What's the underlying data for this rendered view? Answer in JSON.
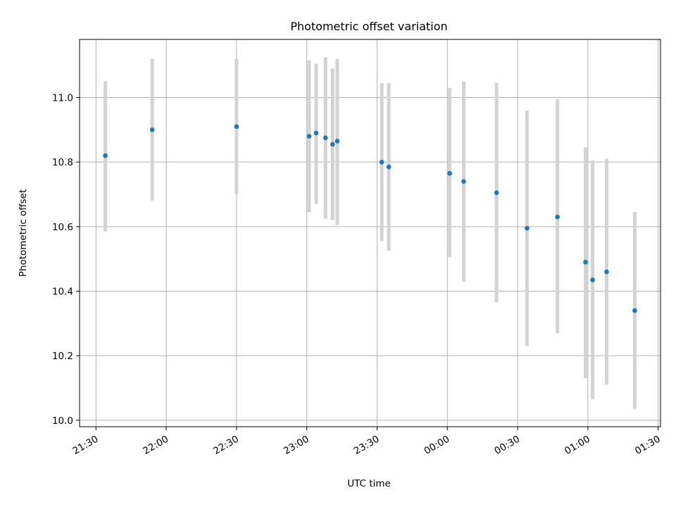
{
  "chart_data": {
    "type": "scatter",
    "title": "Photometric offset variation",
    "xlabel": "UTC time",
    "ylabel": "Photometric offset",
    "x_ticks": [
      "21:30",
      "22:00",
      "22:30",
      "23:00",
      "23:30",
      "00:00",
      "00:30",
      "01:00",
      "01:30"
    ],
    "y_ticks": [
      "10.0",
      "10.2",
      "10.4",
      "10.6",
      "10.8",
      "11.0"
    ],
    "xlim": [
      "21:23",
      "01:31"
    ],
    "ylim": [
      9.98,
      11.18
    ],
    "grid": true,
    "colors": {
      "points": "#1f77b4",
      "error_bars": "#d3d3d3",
      "grid": "#b0b0b0"
    },
    "series": [
      {
        "points": [
          {
            "x": "21:34",
            "y": 10.82,
            "yerr_low": 10.585,
            "yerr_high": 11.05
          },
          {
            "x": "21:54",
            "y": 10.9,
            "yerr_low": 10.68,
            "yerr_high": 11.12
          },
          {
            "x": "22:30",
            "y": 10.91,
            "yerr_low": 10.7,
            "yerr_high": 11.12
          },
          {
            "x": "23:01",
            "y": 10.88,
            "yerr_low": 10.645,
            "yerr_high": 11.115
          },
          {
            "x": "23:04",
            "y": 10.89,
            "yerr_low": 10.67,
            "yerr_high": 11.105
          },
          {
            "x": "23:08",
            "y": 10.875,
            "yerr_low": 10.625,
            "yerr_high": 11.125
          },
          {
            "x": "23:11",
            "y": 10.855,
            "yerr_low": 10.62,
            "yerr_high": 11.09
          },
          {
            "x": "23:13",
            "y": 10.865,
            "yerr_low": 10.605,
            "yerr_high": 11.12
          },
          {
            "x": "23:32",
            "y": 10.8,
            "yerr_low": 10.555,
            "yerr_high": 11.045
          },
          {
            "x": "23:35",
            "y": 10.785,
            "yerr_low": 10.525,
            "yerr_high": 11.045
          },
          {
            "x": "00:01",
            "y": 10.765,
            "yerr_low": 10.505,
            "yerr_high": 11.03
          },
          {
            "x": "00:07",
            "y": 10.74,
            "yerr_low": 10.43,
            "yerr_high": 11.05
          },
          {
            "x": "00:21",
            "y": 10.705,
            "yerr_low": 10.365,
            "yerr_high": 11.045
          },
          {
            "x": "00:34",
            "y": 10.595,
            "yerr_low": 10.23,
            "yerr_high": 10.96
          },
          {
            "x": "00:47",
            "y": 10.63,
            "yerr_low": 10.27,
            "yerr_high": 10.995
          },
          {
            "x": "00:59",
            "y": 10.49,
            "yerr_low": 10.13,
            "yerr_high": 10.845
          },
          {
            "x": "01:02",
            "y": 10.435,
            "yerr_low": 10.065,
            "yerr_high": 10.805
          },
          {
            "x": "01:08",
            "y": 10.46,
            "yerr_low": 10.11,
            "yerr_high": 10.81
          },
          {
            "x": "01:20",
            "y": 10.34,
            "yerr_low": 10.035,
            "yerr_high": 10.645
          }
        ]
      }
    ]
  }
}
